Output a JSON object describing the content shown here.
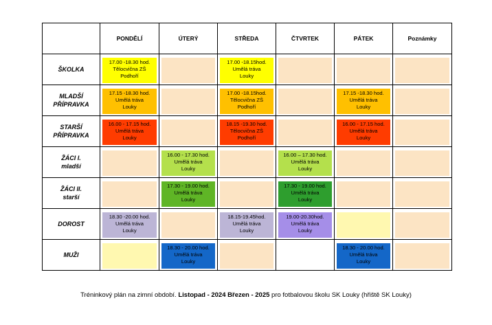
{
  "headers": [
    "",
    "PONDĚLÍ",
    "ÚTERÝ",
    "STŘEDA",
    "ČTVRTEK",
    "PÁTEK",
    "Poznámky"
  ],
  "rows": [
    {
      "label": "ŠKOLKA",
      "cells": [
        {
          "text": "17.00 -18.30 hod.\nTělocvična ZŠ\nPodhoří",
          "bg": "#ffff00"
        },
        {
          "text": "",
          "bg": "#fce4c4"
        },
        {
          "text": "17.00 -18.15hod.\nUmělá tráva\nLouky",
          "bg": "#ffff00"
        },
        {
          "text": "",
          "bg": "#fce4c4"
        },
        {
          "text": "",
          "bg": "#fce4c4"
        },
        {
          "text": "",
          "bg": "#fce4c4"
        }
      ]
    },
    {
      "label": "MLADŠÍ\nPŘÍPRAVKA",
      "cells": [
        {
          "text": "17.15 -18.30 hod.\nUmělá tráva\nLouky",
          "bg": "#ffc000"
        },
        {
          "text": "",
          "bg": "#fce4c4"
        },
        {
          "text": "17.00 -18.15hod.\nTělocvična ZŠ\nPodhoří",
          "bg": "#ffc000"
        },
        {
          "text": "",
          "bg": "#fce4c4"
        },
        {
          "text": "17.15 -18.30 hod.\nUmělá tráva\nLouky",
          "bg": "#ffc000"
        },
        {
          "text": "",
          "bg": "#fce4c4"
        }
      ]
    },
    {
      "label": "STARŠÍ\nPŘÍPRAVKA",
      "cells": [
        {
          "text": "16.00 - 17.15 hod.\nUmělá tráva\nLouky",
          "bg": "#ff3c00"
        },
        {
          "text": "",
          "bg": "#fce4c4"
        },
        {
          "text": "18.15 -19.30 hod.\nTělocvična ZŠ\nPodhoří",
          "bg": "#ff3c00"
        },
        {
          "text": "",
          "bg": "#fce4c4"
        },
        {
          "text": "16.00 - 17.15 hod.\nUmělá tráva\nLouky",
          "bg": "#ff3c00"
        },
        {
          "text": "",
          "bg": "#fce4c4"
        }
      ]
    },
    {
      "label": "ŽÁCI   I.\nmladší",
      "cells": [
        {
          "text": "",
          "bg": "#fce4c4"
        },
        {
          "text": "16.00 - 17.30 hod.\nUmělá tráva\nLouky",
          "bg": "#b4e04c"
        },
        {
          "text": "",
          "bg": "#fce4c4"
        },
        {
          "text": "16.00 – 17.30 hod.\nUmělá tráva\nLouky",
          "bg": "#b4e04c"
        },
        {
          "text": "",
          "bg": "#fce4c4"
        },
        {
          "text": "",
          "bg": "#fce4c4"
        }
      ]
    },
    {
      "label": "ŽÁCI   II.\nstarší",
      "cells": [
        {
          "text": "",
          "bg": "#fce4c4"
        },
        {
          "text": "17.30 - 19.00 hod.\nUmělá tráva\nLouky",
          "bg": "#5fb526"
        },
        {
          "text": "",
          "bg": "#fce4c4"
        },
        {
          "text": "17.30 - 19.00 hod.\nUmělá tráva\nLouky",
          "bg": "#2e9e2e"
        },
        {
          "text": "",
          "bg": "#fce4c4"
        },
        {
          "text": "",
          "bg": "#fce4c4"
        }
      ]
    },
    {
      "label": "DOROST",
      "cells": [
        {
          "text": "18.30 -20.00 hod.\nUmělá tráva\nLouky",
          "bg": "#bcb5d6"
        },
        {
          "text": "",
          "bg": "#fce4c4"
        },
        {
          "text": "18.15-19.45hod.\nUmělá tráva\nLouky",
          "bg": "#bcb5d6"
        },
        {
          "text": "19.00-20.30hod.\nUmělá tráva\nLouky",
          "bg": "#a58ee8"
        },
        {
          "text": "",
          "bg": "#fff8b0"
        },
        {
          "text": "",
          "bg": "#fce4c4"
        }
      ]
    },
    {
      "label": "MUŽI",
      "cells": [
        {
          "text": "",
          "bg": "#fff8b0"
        },
        {
          "text": "18.30 - 20.00 hod.\nUmělá tráva\nLouky",
          "bg": "#1467c8"
        },
        {
          "text": "",
          "bg": "#fce4c4"
        },
        {
          "text": "",
          "bg": "#ffffff"
        },
        {
          "text": "18.30 - 20.00 hod.\nUmělá tráva\nLouky",
          "bg": "#1467c8"
        },
        {
          "text": "",
          "bg": "#fce4c4"
        }
      ]
    }
  ],
  "footer": {
    "part1": "Tréninkový plán na zimní období. ",
    "bold": "Listopad - 2024  Březen - 2025",
    "part2": " pro fotbalovou  školu  SK   Louky  (hřiště SK Louky)"
  }
}
